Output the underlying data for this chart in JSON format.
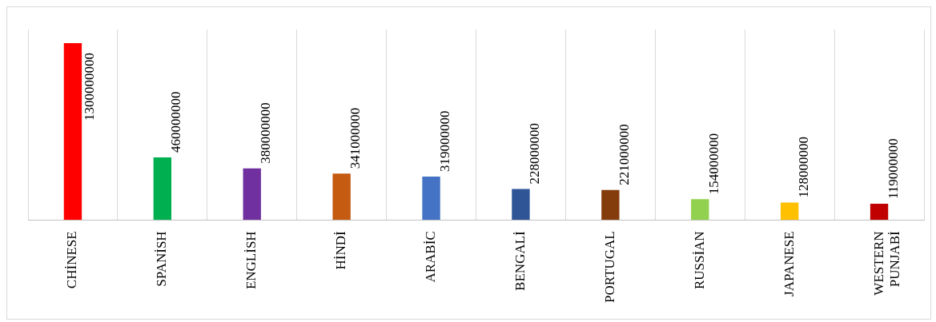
{
  "chart_data": {
    "type": "bar",
    "categories": [
      "CHİNESE",
      "SPANİSH",
      "ENGLİSH",
      "HİNDİ",
      "ARABİC",
      "BENGALİ",
      "PORTUGAL",
      "RUSSİAN",
      "JAPANESE",
      "WESTERN PUNJABİ"
    ],
    "values": [
      1300000000,
      460000000,
      380000000,
      341000000,
      319000000,
      228000000,
      221000000,
      154000000,
      128000000,
      119000000
    ],
    "colors": [
      "#ff0000",
      "#00b050",
      "#7030a0",
      "#c55a11",
      "#4472c4",
      "#2f5597",
      "#843c0c",
      "#92d050",
      "#ffc000",
      "#c00000"
    ],
    "data_labels": true,
    "grid": "x",
    "legend": false
  }
}
